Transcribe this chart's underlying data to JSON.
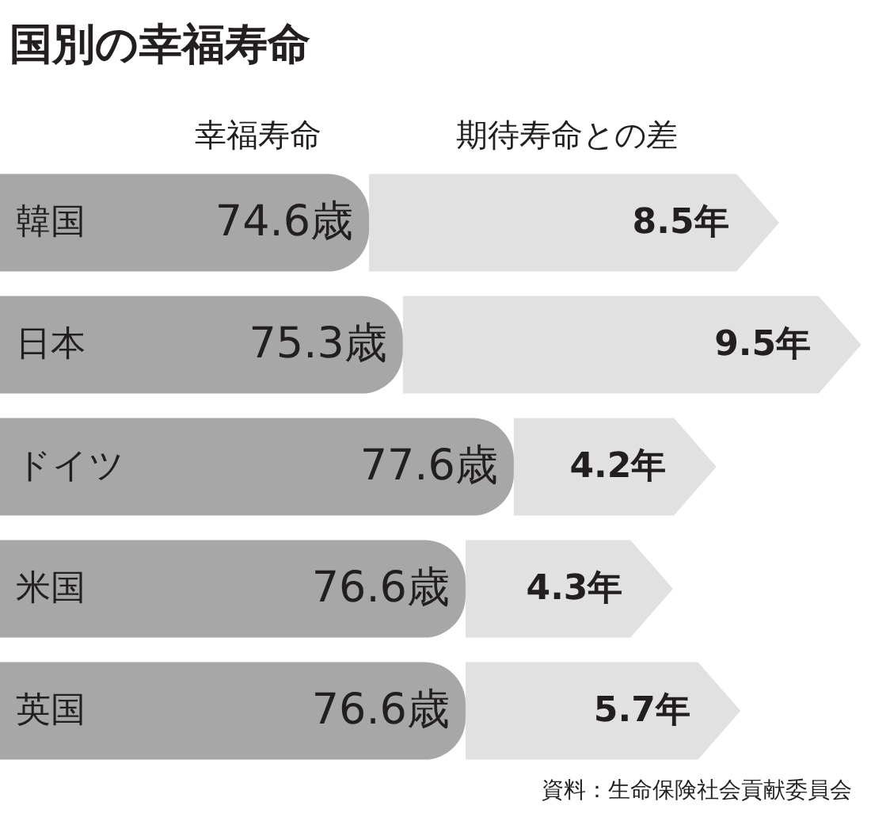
{
  "chart_data": {
    "type": "bar",
    "orientation": "horizontal",
    "stacked": true,
    "title": "国別の幸福寿命",
    "categories": [
      "韓国",
      "日本",
      "ドイツ",
      "米国",
      "英国"
    ],
    "series": [
      {
        "name": "幸福寿命",
        "color": "#a7a7a7",
        "values": [
          74.6,
          75.3,
          77.6,
          76.6,
          76.6
        ],
        "value_labels": [
          "74.6歳",
          "75.3歳",
          "77.6歳",
          "76.6歳",
          "76.6歳"
        ]
      },
      {
        "name": "期待寿命との差",
        "color": "#e1e1e1",
        "values": [
          8.5,
          9.5,
          4.2,
          4.3,
          5.7
        ],
        "value_labels": [
          "8.5年",
          "9.5年",
          "4.2年",
          "4.3年",
          "5.7年"
        ]
      }
    ],
    "tick_labels": "y",
    "legend": "top",
    "annotations": [
      "資料：生命保険社会貢献委員会"
    ]
  }
}
